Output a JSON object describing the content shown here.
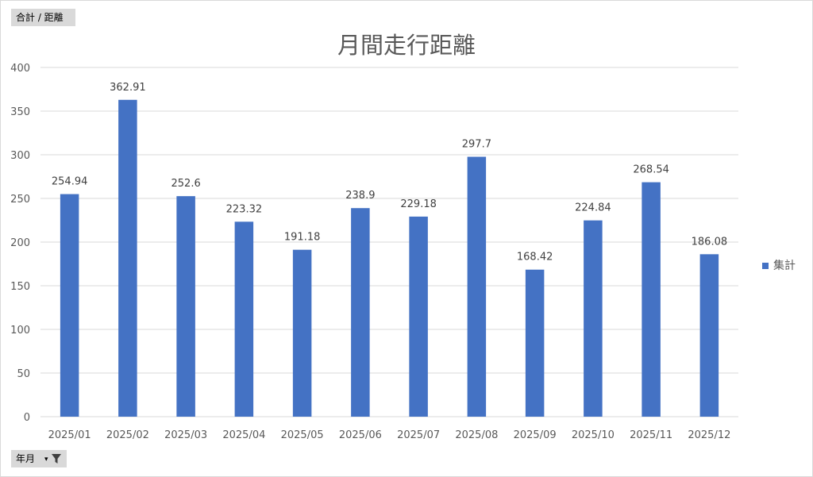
{
  "field_button": {
    "label": "合計 / 距離"
  },
  "axis_field_button": {
    "label": "年月"
  },
  "colors": {
    "bar": "#4472c4",
    "grid": "#d9d9d9",
    "text": "#595959"
  },
  "chart_data": {
    "type": "bar",
    "title": "月間走行距離",
    "categories": [
      "2025/01",
      "2025/02",
      "2025/03",
      "2025/04",
      "2025/05",
      "2025/06",
      "2025/07",
      "2025/08",
      "2025/09",
      "2025/10",
      "2025/11",
      "2025/12"
    ],
    "series": [
      {
        "name": "集計",
        "values": [
          254.94,
          362.91,
          252.6,
          223.32,
          191.18,
          238.9,
          229.18,
          297.7,
          168.42,
          224.84,
          268.54,
          186.08
        ]
      }
    ],
    "ylim": [
      0,
      400
    ],
    "yticks": [
      0,
      50,
      100,
      150,
      200,
      250,
      300,
      350,
      400
    ],
    "grid": true,
    "legend": "right",
    "data_labels": true
  }
}
